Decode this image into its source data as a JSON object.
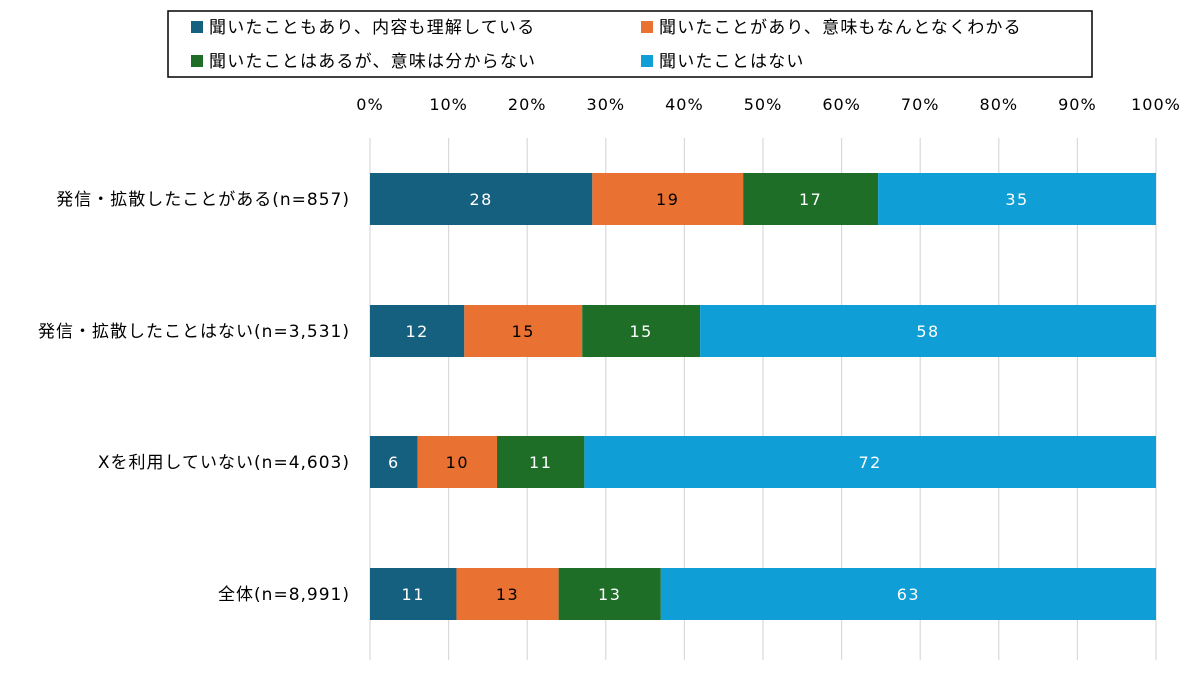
{
  "chart_data": {
    "type": "bar",
    "orientation": "horizontal",
    "stacked": "percent",
    "title": "",
    "xlabel": "",
    "ylabel": "",
    "xlim": [
      0,
      100
    ],
    "x_ticks": [
      "0%",
      "10%",
      "20%",
      "30%",
      "40%",
      "50%",
      "60%",
      "70%",
      "80%",
      "90%",
      "100%"
    ],
    "grid": true,
    "legend_position": "top",
    "categories": [
      "発信・拡散したことがある(n=857)",
      "発信・拡散したことはない(n=3,531)",
      "Xを利用していない(n=4,603)",
      "全体(n=8,991)"
    ],
    "series": [
      {
        "name": "聞いたこともあり、内容も理解している",
        "color": "#16607f",
        "values": [
          28,
          12,
          6,
          11
        ]
      },
      {
        "name": "聞いたことがあり、意味もなんとなくわかる",
        "color": "#e97132",
        "values": [
          19,
          15,
          10,
          13
        ]
      },
      {
        "name": "聞いたことはあるが、意味は分からない",
        "color": "#1e6e28",
        "values": [
          17,
          15,
          11,
          13
        ]
      },
      {
        "name": "聞いたことはない",
        "color": "#0f9ed5",
        "values": [
          35,
          58,
          72,
          63
        ]
      }
    ]
  }
}
